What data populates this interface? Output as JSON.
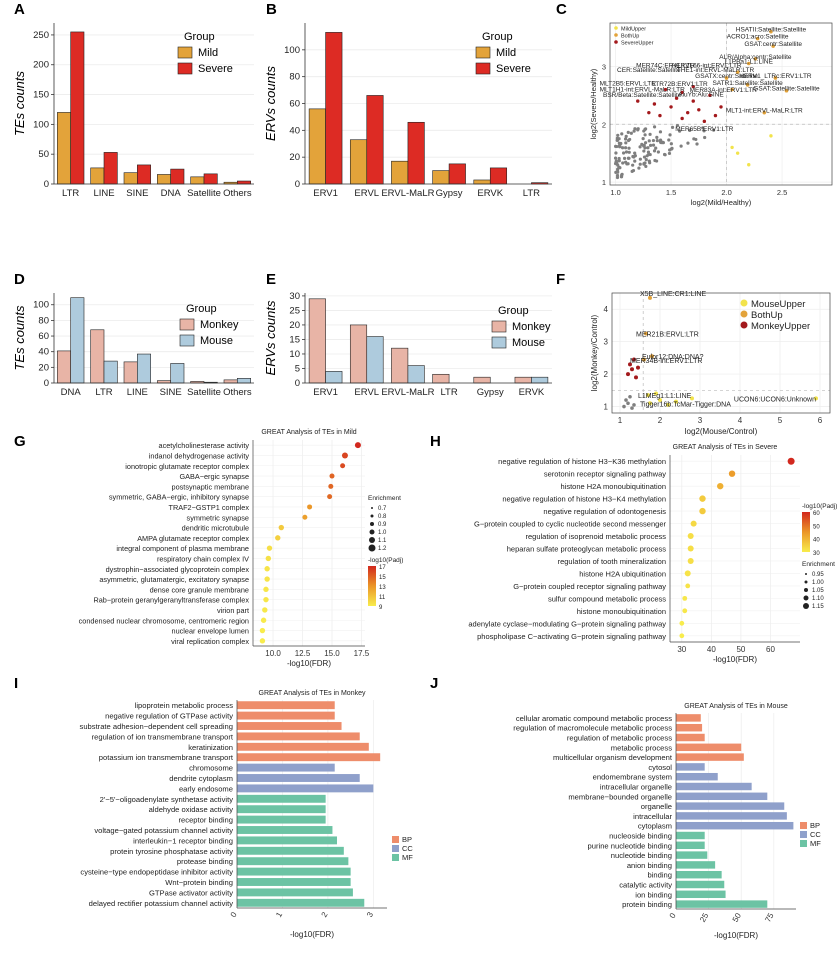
{
  "panels": {
    "A": "A",
    "B": "B",
    "C": "C",
    "D": "D",
    "E": "E",
    "F": "F",
    "G": "G",
    "H": "H",
    "I": "I",
    "J": "J"
  },
  "chart_data": [
    {
      "id": "A",
      "type": "bar",
      "ylabel": "TEs counts",
      "categories": [
        "LTR",
        "LINE",
        "SINE",
        "DNA",
        "Satellite",
        "Others"
      ],
      "legend_title": "Group",
      "series": [
        {
          "name": "Mild",
          "color": "#e3a33a",
          "values": [
            120,
            27,
            19,
            16,
            12,
            3
          ]
        },
        {
          "name": "Severe",
          "color": "#dd2b24",
          "values": [
            255,
            53,
            32,
            25,
            17,
            5
          ]
        }
      ],
      "ylim": [
        0,
        270
      ],
      "yticks": [
        0,
        50,
        100,
        150,
        200,
        250
      ]
    },
    {
      "id": "B",
      "type": "bar",
      "ylabel": "ERVs counts",
      "categories": [
        "ERV1",
        "ERVL",
        "ERVL-MaLR",
        "Gypsy",
        "ERVK",
        "LTR"
      ],
      "legend_title": "Group",
      "series": [
        {
          "name": "Mild",
          "color": "#e3a33a",
          "values": [
            56,
            33,
            17,
            10,
            3,
            0
          ]
        },
        {
          "name": "Severe",
          "color": "#dd2b24",
          "values": [
            113,
            66,
            46,
            15,
            12,
            1
          ]
        }
      ],
      "ylim": [
        0,
        120
      ],
      "yticks": [
        0,
        20,
        40,
        60,
        80,
        100
      ]
    },
    {
      "id": "C",
      "type": "scatter",
      "xlabel": "log2(Mild/Healthy)",
      "ylabel": "log2(Severe/Healthy)",
      "xlim": [
        0.95,
        2.95
      ],
      "ylim": [
        0.95,
        3.75
      ],
      "xticks": [
        1.0,
        1.5,
        2.0,
        2.5
      ],
      "yticks": [
        1,
        2,
        3
      ],
      "legend": [
        {
          "name": "MildUpper",
          "color": "#f2e34b"
        },
        {
          "name": "BothUp",
          "color": "#e3a33a"
        },
        {
          "name": "SevereUpper",
          "color": "#a3191c"
        }
      ],
      "labels": [
        {
          "text": "HSATII:Satellite:Satellite",
          "x": 2.4,
          "y": 3.6
        },
        {
          "text": "ACRO1:acro:Satellite",
          "x": 2.28,
          "y": 3.48
        },
        {
          "text": "GSAT:centr:Satellite",
          "x": 2.42,
          "y": 3.35
        },
        {
          "text": "ALR/Alpha:centr:Satellite",
          "x": 2.26,
          "y": 3.13
        },
        {
          "text": "L1PBa1:L1:LINE",
          "x": 2.2,
          "y": 3.05
        },
        {
          "text": "HERVL66-int:ERVL:LTR",
          "x": 1.82,
          "y": 2.98
        },
        {
          "text": "MER74C:ERVL:LTR",
          "x": 1.45,
          "y": 2.98
        },
        {
          "text": "THE1-int:ERVL-MaLR:LTR",
          "x": 1.9,
          "y": 2.9
        },
        {
          "text": "CER:Satellite:Satellite",
          "x": 1.3,
          "y": 2.9
        },
        {
          "text": "GSATX:centr:Satellite",
          "x": 2.0,
          "y": 2.8
        },
        {
          "text": "HERV1_LTRc:ERV1:LTR",
          "x": 2.44,
          "y": 2.8
        },
        {
          "text": "SATR1:Satellite:Satellite",
          "x": 2.19,
          "y": 2.68
        },
        {
          "text": "LTR72B:ERV1:LTR",
          "x": 1.58,
          "y": 2.66
        },
        {
          "text": "MLT2B5:ERVL:LTR",
          "x": 1.11,
          "y": 2.67
        },
        {
          "text": "GSAT:Satellite:Satellite",
          "x": 2.54,
          "y": 2.58
        },
        {
          "text": "MLT1H1-int:ERVL-MaLR:LTR",
          "x": 1.24,
          "y": 2.57
        },
        {
          "text": "MER83A-int:ERV1:LTR",
          "x": 1.97,
          "y": 2.56
        },
        {
          "text": "AluYb:Alu:SINE",
          "x": 1.77,
          "y": 2.48
        },
        {
          "text": "BSR/Beta:Satellite:Satellite",
          "x": 1.24,
          "y": 2.47
        },
        {
          "text": "MLT1-int:ERVL-MaLR:LTR",
          "x": 2.34,
          "y": 2.2
        },
        {
          "text": "MER65B:ERV1:LTR",
          "x": 1.8,
          "y": 1.88
        }
      ]
    },
    {
      "id": "D",
      "type": "bar",
      "ylabel": "TEs counts",
      "categories": [
        "DNA",
        "LTR",
        "LINE",
        "SINE",
        "Satellite",
        "Others"
      ],
      "legend_title": "Group",
      "series": [
        {
          "name": "Monkey",
          "color": "#e8b4a6",
          "values": [
            41,
            68,
            27,
            3,
            2,
            4
          ]
        },
        {
          "name": "Mouse",
          "color": "#aecbdd",
          "values": [
            109,
            28,
            37,
            25,
            1,
            6
          ]
        }
      ],
      "ylim": [
        0,
        115
      ],
      "yticks": [
        0,
        20,
        40,
        60,
        80,
        100
      ]
    },
    {
      "id": "E",
      "type": "bar",
      "ylabel": "ERVs counts",
      "categories": [
        "ERV1",
        "ERVL",
        "ERVL-MaLR",
        "LTR",
        "Gypsy",
        "ERVK"
      ],
      "legend_title": "Group",
      "series": [
        {
          "name": "Monkey",
          "color": "#e8b4a6",
          "values": [
            29,
            20,
            12,
            3,
            2,
            2
          ]
        },
        {
          "name": "Mouse",
          "color": "#aecbdd",
          "values": [
            4,
            16,
            6,
            0,
            0,
            2
          ]
        }
      ],
      "ylim": [
        0,
        31
      ],
      "yticks": [
        0,
        5,
        10,
        15,
        20,
        25,
        30
      ]
    },
    {
      "id": "F",
      "type": "scatter",
      "xlabel": "log2(Mouse/Control)",
      "ylabel": "log2(Monkey/Control)",
      "xlim": [
        0.8,
        6.25
      ],
      "ylim": [
        0.8,
        4.5
      ],
      "xticks": [
        1,
        2,
        3,
        4,
        5,
        6
      ],
      "yticks": [
        1,
        2,
        3,
        4
      ],
      "legend": [
        {
          "name": "MouseUpper",
          "color": "#f2e34b"
        },
        {
          "name": "BothUp",
          "color": "#e3a33a"
        },
        {
          "name": "MonkeyUpper",
          "color": "#a3191c"
        }
      ],
      "labels": [
        {
          "text": "X5B_LINE:CR1:LINE",
          "x": 1.75,
          "y": 4.35
        },
        {
          "text": "MER21B:ERVL:LTR",
          "x": 1.65,
          "y": 3.25
        },
        {
          "text": "Eulor12:DNA:DNA?",
          "x": 1.8,
          "y": 2.55
        },
        {
          "text": "MER34B-int:ERV1:LTR",
          "x": 1.5,
          "y": 2.43
        },
        {
          "text": "L1MEg1:L1:LINE",
          "x": 1.7,
          "y": 1.35
        },
        {
          "text": "Tigger16b:TcMar-Tigger:DNA",
          "x": 1.75,
          "y": 1.1
        },
        {
          "text": "UCON6:UCON6:Unknown",
          "x": 5.9,
          "y": 1.25
        }
      ]
    },
    {
      "id": "G",
      "type": "scatter",
      "title": "GREAT Analysis of TEs in Mild",
      "xlabel": "-log10(FDR)",
      "xlim": [
        8.3,
        17.8
      ],
      "xticks": [
        10.0,
        12.5,
        15.0,
        17.5
      ],
      "size_legend_title": "Enrichment",
      "size_legend": [
        "0.7",
        "0.8",
        "0.9",
        "1.0",
        "1.1",
        "1.2"
      ],
      "color_legend_title": "-log10(Padj)",
      "color_legend": [
        "17",
        "15",
        "13",
        "11",
        "9"
      ],
      "terms": [
        "acetylcholinesterase activity",
        "indanol dehydrogenase activity",
        "ionotropic glutamate receptor complex",
        "GABA−ergic synapse",
        "postsynaptic membrane",
        "symmetric, GABA−ergic, inhibitory synapse",
        "TRAF2−GSTP1 complex",
        "symmetric synapse",
        "dendritic microtubule",
        "AMPA glutamate receptor complex",
        "integral component of plasma membrane",
        "respiratory chain complex IV",
        "dystrophin−associated glycoprotein complex",
        "asymmetric, glutamatergic, excitatory synapse",
        "dense core granule membrane",
        "Rab−protein geranylgeranyltransferase complex",
        "virion part",
        "condensed nuclear chromosome, centromeric region",
        "nuclear envelope lumen",
        "viral replication complex"
      ],
      "values": [
        17.2,
        16.1,
        15.9,
        15.0,
        14.9,
        14.8,
        13.1,
        12.7,
        10.7,
        10.4,
        9.7,
        9.6,
        9.5,
        9.5,
        9.4,
        9.4,
        9.3,
        9.2,
        9.1,
        9.1
      ]
    },
    {
      "id": "H",
      "type": "scatter",
      "title": "GREAT Analysis of TEs in Severe",
      "xlabel": "-log10(FDR)",
      "xlim": [
        26,
        70
      ],
      "xticks": [
        30,
        40,
        50,
        60
      ],
      "color_legend_title": "-log10(Padj)",
      "color_legend": [
        "60",
        "50",
        "40",
        "30"
      ],
      "size_legend_title": "Enrichment",
      "size_legend": [
        "0.95",
        "1.00",
        "1.05",
        "1.10",
        "1.15"
      ],
      "terms": [
        "negative regulation of histone H3−K36 methylation",
        "serotonin receptor signaling pathway",
        "histone H2A monoubiquitination",
        "negative regulation of histone H3−K4 methylation",
        "negative regulation of odontogenesis",
        "G−protein coupled to cyclic nucleotide second messenger",
        "regulation of isoprenoid metabolic process",
        "heparan sulfate proteoglycan metabolic process",
        "regulation of tooth mineralization",
        "histone H2A ubiquitination",
        "G−protein coupled receptor signaling pathway",
        "sulfur compound metabolic process",
        "histone monoubiquitination",
        "adenylate cyclase−modulating G−protein signaling pathway",
        "phospholipase C−activating G−protein signaling pathway"
      ],
      "values": [
        67,
        47,
        43,
        37,
        37,
        34,
        33,
        33,
        33,
        32,
        32,
        31,
        31,
        30,
        30
      ]
    },
    {
      "id": "I",
      "type": "bar",
      "title": "GREAT Analysis of TEs in Monkey",
      "xlabel": "-log10(FDR)",
      "xlim": [
        0,
        3.3
      ],
      "xticks": [
        0,
        1,
        2,
        3
      ],
      "legend": [
        {
          "name": "BP",
          "color": "#ee8d6b"
        },
        {
          "name": "CC",
          "color": "#8fa0cb"
        },
        {
          "name": "MF",
          "color": "#6cc3a4"
        }
      ],
      "categories": [
        "lipoprotein metabolic process",
        "negative regulation of GTPase activity",
        "substrate adhesion−dependent cell spreading",
        "regulation of ion transmembrane transport",
        "keratinization",
        "potassium ion transmembrane transport",
        "chromosome",
        "dendrite cytoplasm",
        "early endosome",
        "2'−5'−oligoadenylate synthetase activity",
        "aldehyde oxidase activity",
        "receptor binding",
        "voltage−gated potassium channel activity",
        "interleukin−1 receptor binding",
        "protein tyrosine phosphatase activity",
        "protease binding",
        "cysteine−type endopeptidase inhibitor activity",
        "Wnt−protein binding",
        "GTPase activator activity",
        "delayed rectifier potassium channel activity"
      ],
      "groups": [
        "BP",
        "BP",
        "BP",
        "BP",
        "BP",
        "BP",
        "CC",
        "CC",
        "CC",
        "MF",
        "MF",
        "MF",
        "MF",
        "MF",
        "MF",
        "MF",
        "MF",
        "MF",
        "MF",
        "MF"
      ],
      "values": [
        2.15,
        2.15,
        2.3,
        2.7,
        2.9,
        3.15,
        2.15,
        2.7,
        3.0,
        1.95,
        1.95,
        1.95,
        2.1,
        2.2,
        2.35,
        2.45,
        2.5,
        2.5,
        2.55,
        2.8
      ]
    },
    {
      "id": "J",
      "type": "bar",
      "title": "GREAT Analysis of TEs in Mouse",
      "xlabel": "-log10(FDR)",
      "xlim": [
        0,
        92
      ],
      "xticks": [
        0,
        25,
        50,
        75
      ],
      "legend": [
        {
          "name": "BP",
          "color": "#ee8d6b"
        },
        {
          "name": "CC",
          "color": "#8fa0cb"
        },
        {
          "name": "MF",
          "color": "#6cc3a4"
        }
      ],
      "categories": [
        "cellular aromatic compound metabolic process",
        "regulation of macromolecule metabolic process",
        "regulation of metabolic process",
        "metabolic process",
        "multicellular organism development",
        "cytosol",
        "endomembrane system",
        "intracellular organelle",
        "membrane−bounded organelle",
        "organelle",
        "intracellular",
        "cytoplasm",
        "nucleoside binding",
        "purine nucleotide binding",
        "nucleotide binding",
        "anion binding",
        "binding",
        "catalytic activity",
        "ion binding",
        "protein binding"
      ],
      "groups": [
        "BP",
        "BP",
        "BP",
        "BP",
        "BP",
        "CC",
        "CC",
        "CC",
        "CC",
        "CC",
        "CC",
        "CC",
        "MF",
        "MF",
        "MF",
        "MF",
        "MF",
        "MF",
        "MF",
        "MF"
      ],
      "values": [
        19,
        20,
        22,
        50,
        52,
        22,
        32,
        58,
        70,
        83,
        85,
        90,
        22,
        22,
        24,
        30,
        35,
        37,
        38,
        70
      ]
    }
  ]
}
